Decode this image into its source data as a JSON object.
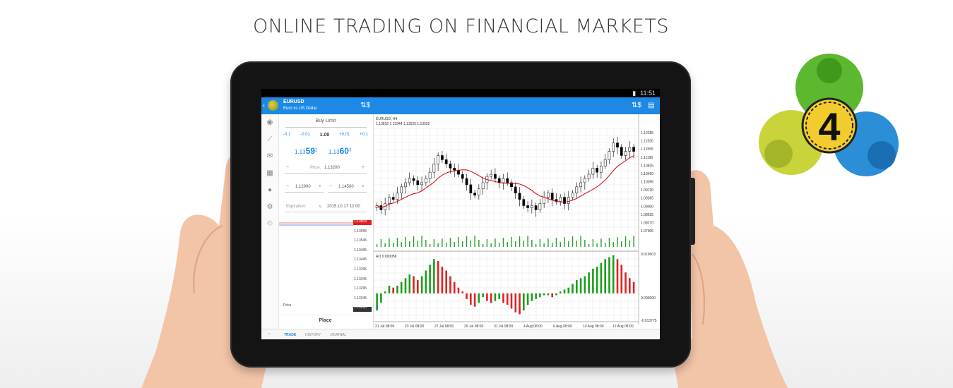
{
  "headline": "ONLINE TRADING ON FINANCIAL MARKETS",
  "status": {
    "time": "11:51"
  },
  "symbol": {
    "name": "EURUSD",
    "description": "Euro vs US Dollar"
  },
  "order": {
    "type": "Buy Limit",
    "volume_steps": [
      "-0.1",
      "-0.01",
      "1.00",
      "+0.01",
      "+0.1"
    ],
    "bid_prefix": "1.13",
    "bid_big": "59",
    "bid_sup": "2",
    "ask_prefix": "1.13",
    "ask_big": "60",
    "ask_sup": "3",
    "price_label": "Price:",
    "price_value": "1.13200",
    "sl_value": "1.12900",
    "tp_value": "1.14500",
    "expiration_label": "Expiration:",
    "expiration_value": "2015.10.17 12:00",
    "mini_prices": [
      "1.13603",
      "1.13595",
      "1.13545",
      "1.13495",
      "1.13445",
      "1.13395",
      "1.13345",
      "1.13295",
      "1.13245",
      "1.13200"
    ],
    "mini_price_label": "Price",
    "place_label": "Place",
    "minus": "−",
    "plus": "+"
  },
  "tabs": [
    "TRADE",
    "HISTORY",
    "JOURNAL"
  ],
  "rail_icons": [
    "quotes-icon",
    "chart-icon",
    "mail-icon",
    "news-icon",
    "chat-icon",
    "settings-icon",
    "community-icon"
  ],
  "chart_data": {
    "type": "candlestick",
    "title": "EURUSD, H4",
    "ohlc_label": "1.13818 1.13944 1.13525 1.13592",
    "price_ticks": [
      "1.12285",
      "1.11920",
      "1.11555",
      "1.11190",
      "1.10825",
      "1.10460",
      "1.10095",
      "1.09730",
      "1.09365",
      "1.09000",
      "1.08635",
      "1.08270",
      "1.07905"
    ],
    "price_range": [
      1.076,
      1.125
    ],
    "close": [
      1.088,
      1.086,
      1.089,
      1.092,
      1.091,
      1.094,
      1.097,
      1.099,
      1.101,
      1.1,
      1.098,
      1.099,
      1.101,
      1.104,
      1.108,
      1.112,
      1.11,
      1.108,
      1.106,
      1.105,
      1.103,
      1.101,
      1.098,
      1.094,
      1.093,
      1.096,
      1.099,
      1.102,
      1.103,
      1.101,
      1.099,
      1.101,
      1.099,
      1.097,
      1.094,
      1.091,
      1.088,
      1.087,
      1.088,
      1.086,
      1.089,
      1.092,
      1.094,
      1.091,
      1.09,
      1.092,
      1.089,
      1.092,
      1.094,
      1.097,
      1.099,
      1.101,
      1.103,
      1.106,
      1.104,
      1.107,
      1.11,
      1.114,
      1.118,
      1.116,
      1.112,
      1.114,
      1.116,
      1.114
    ],
    "ma_label": "",
    "ao_label": "AO 0.000056",
    "ao_ticks": [
      "0.019603",
      "0.000000",
      "-0.013775"
    ],
    "ao_range": [
      -0.0138,
      0.0196
    ],
    "ao": [
      -0.009,
      -0.005,
      0.001,
      0.004,
      0.003,
      0.004,
      0.006,
      0.008,
      0.01,
      0.009,
      0.007,
      0.009,
      0.012,
      0.015,
      0.018,
      0.017,
      0.014,
      0.012,
      0.009,
      0.006,
      0.003,
      0.001,
      -0.003,
      -0.006,
      -0.007,
      -0.005,
      -0.002,
      -0.004,
      -0.005,
      -0.004,
      -0.003,
      -0.005,
      -0.006,
      -0.008,
      -0.01,
      -0.011,
      -0.009,
      -0.006,
      -0.004,
      -0.003,
      -0.002,
      -0.001,
      -0.001,
      -0.002,
      -0.001,
      0.001,
      0.002,
      0.003,
      0.005,
      0.007,
      0.008,
      0.009,
      0.011,
      0.013,
      0.014,
      0.016,
      0.018,
      0.019,
      0.02,
      0.018,
      0.015,
      0.011,
      0.008,
      0.006
    ],
    "x_ticks": [
      "21 Jul 08:00",
      "23 Jul 08:00",
      "27 Jul 08:00",
      "29 Jul 08:00",
      "31 Jul 08:00",
      "4 Aug 08:00",
      "6 Aug 08:00",
      "10 Aug 08:00",
      "12 Aug 08:00"
    ],
    "colors": {
      "bull": "#000000",
      "ma": "#d00000",
      "volume": "#2aa02a",
      "ao_up": "#1b9e1b",
      "ao_down": "#e02020",
      "grid": "#e6e6e6"
    }
  },
  "logo": {
    "number": "4"
  }
}
